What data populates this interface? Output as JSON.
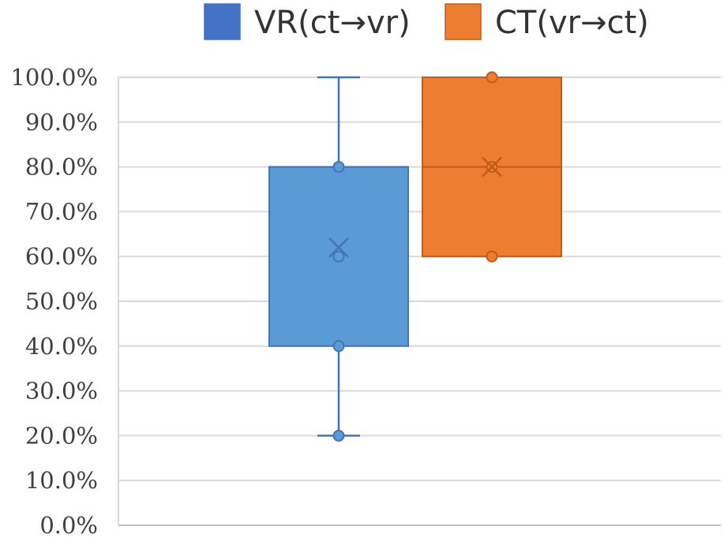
{
  "chart_data": {
    "type": "boxplot",
    "title": "",
    "xlabel": "",
    "ylabel": "",
    "ylim": [
      0,
      100
    ],
    "y_tick_step": 10,
    "y_tick_labels": [
      "0.0%",
      "10.0%",
      "20.0%",
      "30.0%",
      "40.0%",
      "50.0%",
      "60.0%",
      "70.0%",
      "80.0%",
      "90.0%",
      "100.0%"
    ],
    "grid": true,
    "legend_position": "top",
    "series": [
      {
        "name": "VR(ct→vr)",
        "color": "#5b9bd5",
        "edge_color": "#4275b8",
        "legend_color": "#4472c4",
        "whisker_low": 20,
        "q1": 40,
        "median": 80,
        "q3": 80,
        "whisker_high": 100,
        "mean": 62,
        "points": [
          20,
          40,
          60,
          80
        ]
      },
      {
        "name": "CT(vr→ct)",
        "color": "#ed7d31",
        "edge_color": "#c25b17",
        "legend_color": "#ed7d31",
        "whisker_low": 60,
        "q1": 60,
        "median": 80,
        "q3": 100,
        "whisker_high": 100,
        "mean": 80,
        "points": [
          60,
          80,
          100
        ]
      }
    ]
  }
}
